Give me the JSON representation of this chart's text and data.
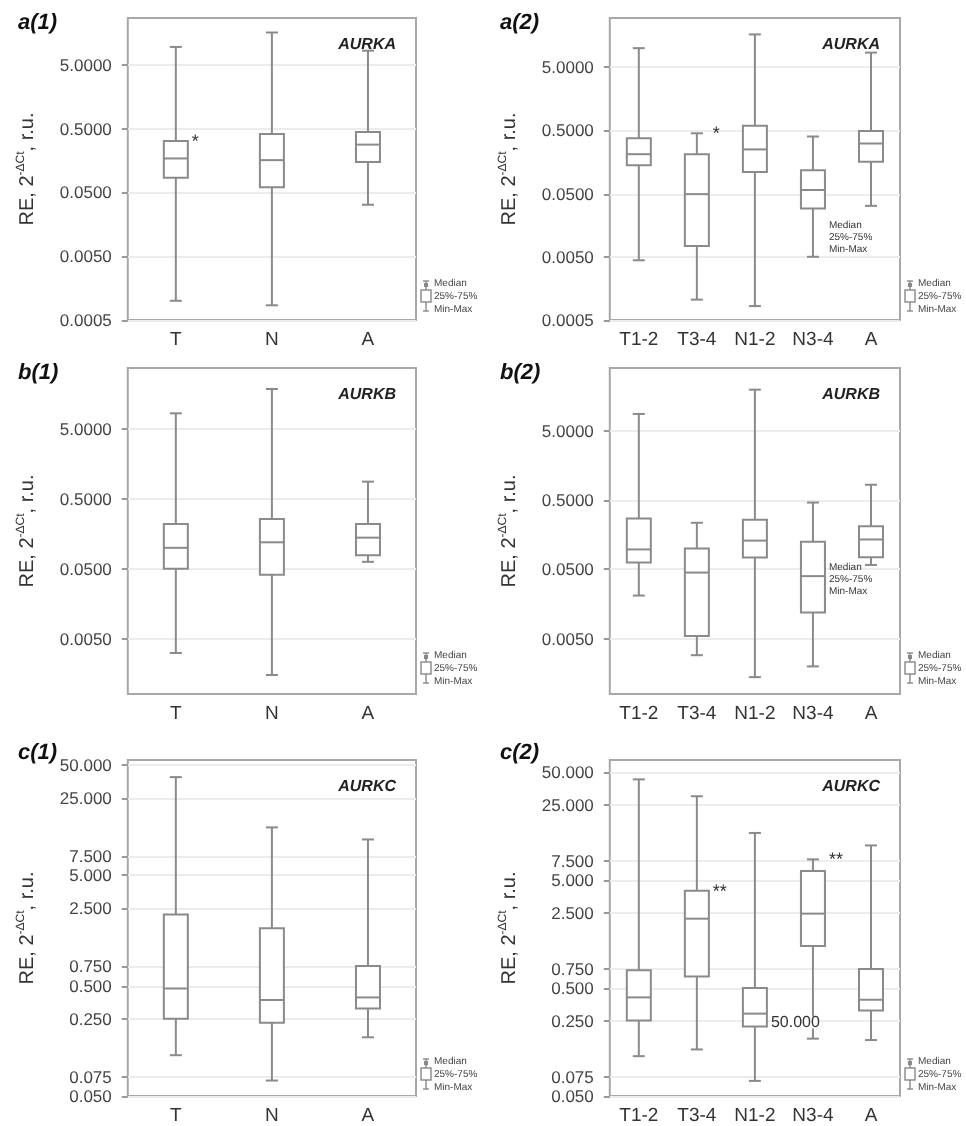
{
  "chart_data": [
    {
      "type": "box",
      "title": "a(1)",
      "subtitle": "AURKA",
      "ylabel": "RE, 2$^{-ΔCt}$, r.u.",
      "categories": [
        "T",
        "N",
        "A"
      ],
      "log": "y",
      "grid": "y",
      "ylim": [
        0.0005,
        27
      ],
      "yticks": [
        {
          "value": 0.0005,
          "label": "0.0005"
        },
        {
          "value": 0.005,
          "label": "0.0050"
        },
        {
          "value": 0.05,
          "label": "0.0500"
        },
        {
          "value": 0.5,
          "label": "0.5000"
        },
        {
          "value": 5,
          "label": "5.0000"
        }
      ],
      "boxes": [
        {
          "low": 0.001,
          "q1": 0.085,
          "median": 0.17,
          "q3": 0.32,
          "high": 9.5
        },
        {
          "low": 0.00085,
          "q1": 0.06,
          "median": 0.16,
          "q3": 0.41,
          "high": 16
        },
        {
          "low": 0.032,
          "q1": 0.15,
          "median": 0.28,
          "q3": 0.44,
          "high": 8.3
        }
      ],
      "annotations": [
        {
          "text": "*",
          "x": "T",
          "y": 0.32
        },
        "Median",
        "25%-75%",
        "Min-Max"
      ]
    },
    {
      "type": "box",
      "title": "a(2)",
      "subtitle": "AURKA",
      "ylabel": "RE, 2$^{-ΔCt}$, r.u.",
      "categories": [
        "T1-2",
        "T3-4",
        "N1-2",
        "N3-4",
        "A"
      ],
      "log": "y",
      "grid": "y",
      "ylim": [
        0.0005,
        30
      ],
      "yticks": [
        {
          "value": 0.0005,
          "label": "0.0005"
        },
        {
          "value": 0.005,
          "label": "0.0050"
        },
        {
          "value": 0.05,
          "label": "0.0500"
        },
        {
          "value": 0.5,
          "label": "0.5000"
        },
        {
          "value": 5,
          "label": "5.0000"
        }
      ],
      "boxes": [
        {
          "low": 0.0044,
          "q1": 0.14,
          "median": 0.21,
          "q3": 0.375,
          "high": 10
        },
        {
          "low": 0.00105,
          "q1": 0.0074,
          "median": 0.049,
          "q3": 0.21,
          "high": 0.45
        },
        {
          "low": 0.00083,
          "q1": 0.11,
          "median": 0.25,
          "q3": 0.59,
          "high": 16.5
        },
        {
          "low": 0.005,
          "q1": 0.029,
          "median": 0.057,
          "q3": 0.117,
          "high": 0.4
        },
        {
          "low": 0.032,
          "q1": 0.16,
          "median": 0.31,
          "q3": 0.49,
          "high": 8.5
        }
      ],
      "annotations": [
        {
          "text": "*",
          "x": "T3-4",
          "y": 0.45
        },
        {
          "text": "Median\n25%-75%\nMin-Max",
          "x": "N3-4",
          "y": 0.01
        },
        "Median",
        "25%-75%",
        "Min-Max"
      ]
    },
    {
      "type": "box",
      "title": "b(1)",
      "subtitle": "AURKB",
      "ylabel": "RE, 2$^{-ΔCt}$, r.u.",
      "categories": [
        "T",
        "N",
        "A"
      ],
      "log": "y",
      "grid": "y",
      "ylim": [
        0.0008,
        38
      ],
      "yticks": [
        {
          "value": 0.005,
          "label": "0.0050"
        },
        {
          "value": 0.05,
          "label": "0.0500"
        },
        {
          "value": 0.5,
          "label": "0.5000"
        },
        {
          "value": 5,
          "label": "5.0000"
        }
      ],
      "boxes": [
        {
          "low": 0.0031,
          "q1": 0.05,
          "median": 0.1,
          "q3": 0.22,
          "high": 8.5
        },
        {
          "low": 0.0015,
          "q1": 0.041,
          "median": 0.12,
          "q3": 0.26,
          "high": 19
        },
        {
          "low": 0.063,
          "q1": 0.078,
          "median": 0.14,
          "q3": 0.22,
          "high": 0.89
        }
      ],
      "annotations": [
        "Median",
        "25%-75%",
        "Min-Max"
      ]
    },
    {
      "type": "box",
      "title": "b(2)",
      "subtitle": "AURKB",
      "ylabel": "RE, 2$^{-ΔCt}$, r.u.",
      "categories": [
        "T1-2",
        "T3-4",
        "N1-2",
        "N3-4",
        "A"
      ],
      "log": "y",
      "grid": "y",
      "ylim": [
        0.0008,
        40
      ],
      "yticks": [
        {
          "value": 0.005,
          "label": "0.0050"
        },
        {
          "value": 0.05,
          "label": "0.0500"
        },
        {
          "value": 0.5,
          "label": "0.5000"
        },
        {
          "value": 5,
          "label": "5.0000"
        }
      ],
      "boxes": [
        {
          "low": 0.021,
          "q1": 0.063,
          "median": 0.097,
          "q3": 0.27,
          "high": 8.7
        },
        {
          "low": 0.0029,
          "q1": 0.0055,
          "median": 0.045,
          "q3": 0.1,
          "high": 0.235
        },
        {
          "low": 0.0014,
          "q1": 0.074,
          "median": 0.13,
          "q3": 0.26,
          "high": 19.5
        },
        {
          "low": 0.002,
          "q1": 0.012,
          "median": 0.04,
          "q3": 0.125,
          "high": 0.46
        },
        {
          "low": 0.058,
          "q1": 0.075,
          "median": 0.135,
          "q3": 0.21,
          "high": 0.83
        }
      ],
      "annotations": [
        {
          "text": "Median\n25%-75%\nMin-Max",
          "x": "N3-4",
          "y": 0.035
        },
        "Median",
        "25%-75%",
        "Min-Max"
      ]
    },
    {
      "type": "box",
      "title": "c(1)",
      "subtitle": "AURKC",
      "ylabel": "RE, 2$^{-ΔCt}$, r.u.",
      "categories": [
        "T",
        "N",
        "A"
      ],
      "log": "y",
      "grid": "y",
      "ylim": [
        0.05,
        55
      ],
      "yticks": [
        {
          "value": 0.05,
          "label": "0.050"
        },
        {
          "value": 0.075,
          "label": "0.075"
        },
        {
          "value": 0.25,
          "label": "0.250"
        },
        {
          "value": 0.5,
          "label": "0.500"
        },
        {
          "value": 0.75,
          "label": "0.750"
        },
        {
          "value": 2.5,
          "label": "2.500"
        },
        {
          "value": 5,
          "label": "5.000"
        },
        {
          "value": 7.5,
          "label": "7.500"
        },
        {
          "value": 25,
          "label": "25.000"
        },
        {
          "value": 50,
          "label": "50.000"
        }
      ],
      "boxes": [
        {
          "low": 0.117,
          "q1": 0.25,
          "median": 0.47,
          "q3": 2.2,
          "high": 38.5
        },
        {
          "low": 0.069,
          "q1": 0.23,
          "median": 0.37,
          "q3": 1.65,
          "high": 13.5
        },
        {
          "low": 0.17,
          "q1": 0.31,
          "median": 0.39,
          "q3": 0.75,
          "high": 10.5
        }
      ],
      "annotations": [
        "Median",
        "25%-75%",
        "Min-Max"
      ]
    },
    {
      "type": "box",
      "title": "c(2)",
      "subtitle": "AURKC",
      "ylabel": "RE, 2$^{-ΔCt}$, r.u.",
      "categories": [
        "T1-2",
        "T3-4",
        "N1-2",
        "N3-4",
        "A"
      ],
      "log": "y",
      "grid": "y",
      "ylim": [
        0.05,
        65
      ],
      "yticks": [
        {
          "value": 0.05,
          "label": "0.050"
        },
        {
          "value": 0.075,
          "label": "0.075"
        },
        {
          "value": 0.25,
          "label": "0.250"
        },
        {
          "value": 0.5,
          "label": "0.500"
        },
        {
          "value": 0.75,
          "label": "0.750"
        },
        {
          "value": 2.5,
          "label": "2.500"
        },
        {
          "value": 5,
          "label": "5.000"
        },
        {
          "value": 7.5,
          "label": "7.500"
        },
        {
          "value": 25,
          "label": "25.000"
        },
        {
          "value": 50,
          "label": "50.000"
        }
      ],
      "boxes": [
        {
          "low": 0.117,
          "q1": 0.25,
          "median": 0.41,
          "q3": 0.73,
          "high": 43
        },
        {
          "low": 0.135,
          "q1": 0.64,
          "median": 2.2,
          "q3": 4,
          "high": 30
        },
        {
          "low": 0.069,
          "q1": 0.22,
          "median": 0.29,
          "q3": 0.5,
          "high": 13.7
        },
        {
          "low": 0.17,
          "q1": 1.23,
          "median": 2.45,
          "q3": 6.1,
          "high": 7.8
        },
        {
          "low": 0.165,
          "q1": 0.31,
          "median": 0.39,
          "q3": 0.75,
          "high": 10.5
        }
      ],
      "annotations": [
        {
          "text": "**",
          "x": "T3-4",
          "y": 4
        },
        {
          "text": "**",
          "x": "N3-4",
          "y": 7.8
        },
        {
          "text": "50.000",
          "x": "N1-2",
          "y": 0.24
        },
        "Median",
        "25%-75%",
        "Min-Max"
      ]
    }
  ]
}
